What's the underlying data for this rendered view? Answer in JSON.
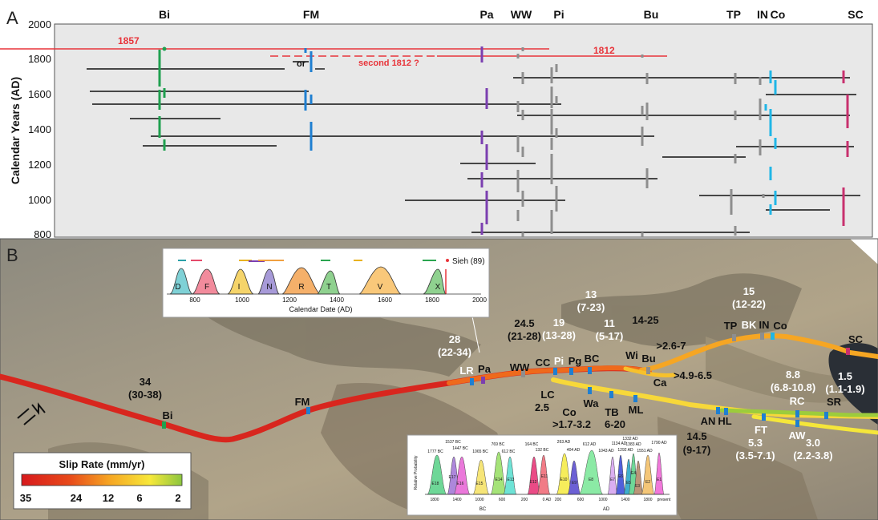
{
  "panel_a": {
    "label": "A",
    "y_axis_label": "Calendar Years (AD)",
    "y_ticks": [
      "2000",
      "1800",
      "1600",
      "1400",
      "1200",
      "1000",
      "800"
    ],
    "site_labels": [
      "Bi",
      "FM",
      "Pa",
      "WW",
      "Pi",
      "Bu",
      "TP",
      "IN",
      "Co",
      "SC"
    ],
    "annotations": {
      "e1857": "1857",
      "e1812": "1812",
      "second1812": "second 1812 ?",
      "or": "or"
    },
    "colors": {
      "red": "#e8343a",
      "black": "#111111",
      "green": "#1fa04f",
      "blue": "#1f7fd1",
      "purple": "#7b3fb0",
      "gray": "#8e8e8e",
      "cyan": "#20b6e6",
      "magenta": "#c8306e"
    }
  },
  "panel_b": {
    "label": "B",
    "legend": {
      "title": "Slip Rate (mm/yr)",
      "ticks": [
        "35",
        "24",
        "12",
        "6",
        "2"
      ]
    },
    "fault_labels": {
      "bi": "Bi",
      "fm": "FM",
      "lr": "LR",
      "pa": "Pa",
      "ww": "WW",
      "cc": "CC",
      "pi": "Pi",
      "pg": "Pg",
      "bc": "BC",
      "wi": "Wi",
      "bu": "Bu",
      "ca": "Ca",
      "tp": "TP",
      "bk": "BK",
      "in": "IN",
      "co_n": "Co",
      "sc": "SC",
      "lc": "LC",
      "co_s": "Co",
      "wa": "Wa",
      "tb": "TB",
      "ml": "ML",
      "an": "AN",
      "hl": "HL",
      "ft": "FT",
      "rc": "RC",
      "sr": "SR",
      "aw": "AW"
    },
    "rates": {
      "r34": "34",
      "r34r": "(30-38)",
      "r28": "28",
      "r28r": "(22-34)",
      "r245": "24.5",
      "r245r": "(21-28)",
      "r19": "19",
      "r19r": "(13-28)",
      "r13": "13",
      "r13r": "(7-23)",
      "r11": "11",
      "r11r": "(5-17)",
      "r1425": "14-25",
      "r26": ">2.6-7",
      "r49": ">4.9-6.5",
      "r15": "15",
      "r15r": "(12-22)",
      "r25": "2.5",
      "r17": ">1.7-3.2",
      "r620": "6-20",
      "r145": "14.5",
      "r145r": "(9-17)",
      "r53": "5.3",
      "r53r": "(3.5-7.1)",
      "r88": "8.8",
      "r88r": "(6.8-10.8)",
      "r15b": "1.5",
      "r15br": "(1.1-1.9)",
      "r30": "3.0",
      "r30r": "(2.2-3.8)"
    },
    "inset_top": {
      "legend": "Sieh (89)",
      "x_title": "Calendar Date (AD)",
      "x_ticks": [
        "800",
        "1000",
        "1200",
        "1400",
        "1600",
        "1800",
        "2000"
      ],
      "events": [
        "D",
        "F",
        "I",
        "N",
        "R",
        "T",
        "V",
        "X"
      ]
    },
    "inset_bottom": {
      "y_label": "Relative Probability",
      "dates": [
        "1777 BC",
        "1537 BC",
        "1447 BC",
        "1065 BC",
        "769 BC",
        "612 BC",
        "164 BC",
        "132 BC",
        "263 AD",
        "404 AD",
        "612 AD",
        "1043 AD",
        "1134 AD",
        "1292 AD",
        "1332 AD",
        "1383 AD",
        "1551 AD",
        "1790 AD"
      ],
      "events": [
        "E18",
        "E17",
        "E16",
        "E15",
        "E14",
        "E13",
        "E12",
        "E11",
        "E10",
        "E9",
        "E8",
        "E7",
        "E6",
        "E5",
        "E4",
        "E3",
        "E2",
        "E1"
      ],
      "x_ticks": [
        "1800",
        "1400",
        "1000",
        "600",
        "200",
        "0 AD",
        "200",
        "600",
        "1000",
        "1400",
        "1800"
      ],
      "bc_label": "BC",
      "ad_label": "AD",
      "present": "present"
    }
  }
}
